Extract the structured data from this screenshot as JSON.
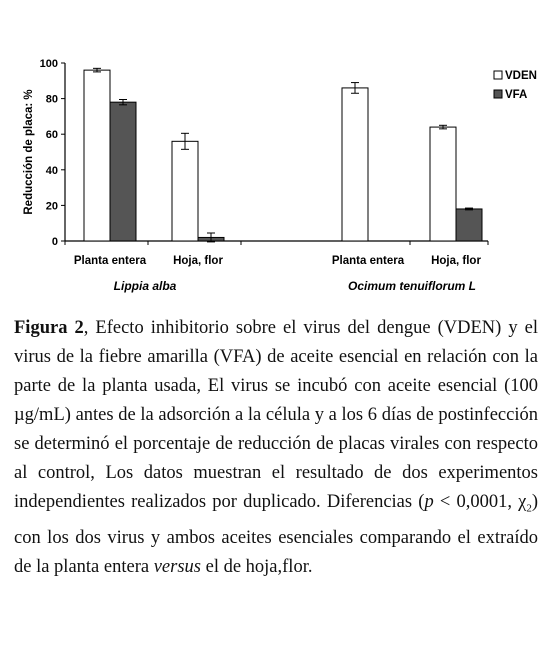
{
  "chart_data": {
    "type": "bar",
    "ylabel": "Reducción de placa: %",
    "ylim": [
      0,
      100
    ],
    "yticks": [
      0,
      20,
      40,
      60,
      80,
      100
    ],
    "grid": false,
    "legend_position": "top-right",
    "groups": [
      {
        "label": "Lippia alba",
        "categories": [
          "Planta entera",
          "Hoja, flor"
        ]
      },
      {
        "label": "Ocimum tenuiflorum L",
        "categories": [
          "Planta entera",
          "Hoja, flor"
        ]
      }
    ],
    "categories": [
      "Planta entera",
      "Hoja, flor",
      "Planta entera",
      "Hoja, flor"
    ],
    "series": [
      {
        "name": "VDEN",
        "color": "#ffffff",
        "values": [
          96,
          56,
          86,
          64
        ],
        "errors": [
          1,
          4.5,
          3,
          1
        ]
      },
      {
        "name": "VFA",
        "color": "#555555",
        "values": [
          78,
          2,
          null,
          18
        ],
        "errors": [
          1.5,
          2.5,
          null,
          0.5
        ]
      }
    ]
  },
  "caption": {
    "label": "Figura 2",
    "text_1": ", Efecto inhibitorio sobre el virus del dengue (VDEN) y el virus de la fiebre amarilla (VFA) de aceite esencial en relación con la parte de la planta usada,  El virus se incubó con aceite esencial (100 µg/mL) antes de la adsorción a la célula y a los 6 días de postinfección se determinó el porcentaje de reducción de placas virales con respecto al control, Los datos muestran el resultado de dos experimentos independientes realizados por duplicado. Diferencias (",
    "p_symbol": "p",
    "text_2": " < 0,0001, χ",
    "chi_subscript": "2",
    "text_3": ") con los dos virus y ambos aceites esenciales comparando el extraído de la planta entera ",
    "versus": "versus",
    "text_4": " el de hoja,flor."
  }
}
